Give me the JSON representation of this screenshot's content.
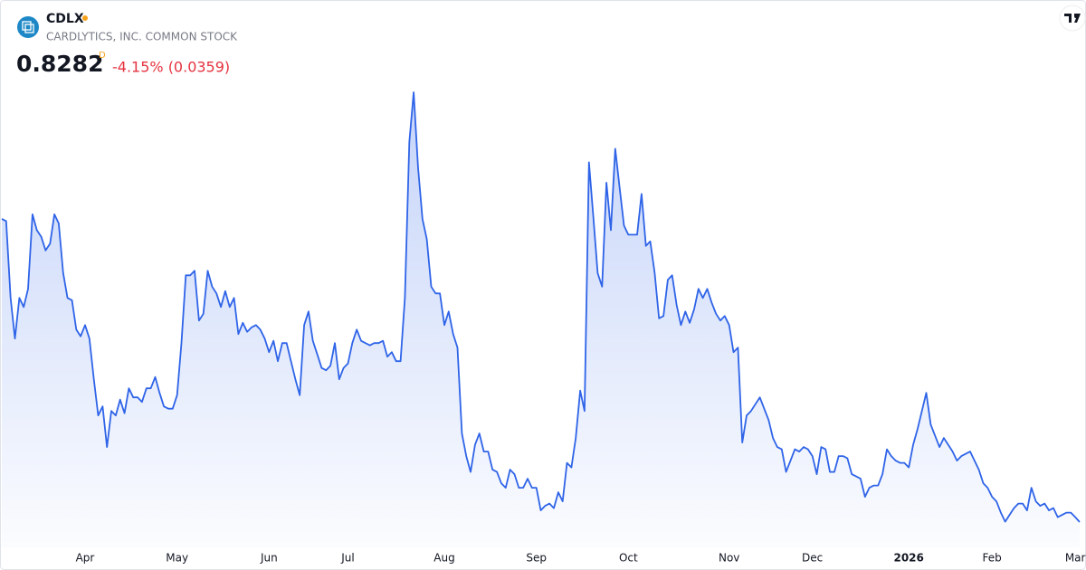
{
  "header": {
    "symbol": "CDLX",
    "name": "CARDLYTICS, INC. COMMON STOCK",
    "price": "0.8282",
    "flag": "D",
    "change": "-4.15% (0.0359)"
  },
  "chart_data": {
    "type": "area",
    "color": "#2f64e8",
    "categories": [
      null,
      null,
      null,
      null,
      null,
      null,
      null,
      null,
      null,
      null,
      null,
      null,
      null,
      null,
      null,
      null,
      null,
      null,
      null,
      "Apr",
      null,
      null,
      null,
      null,
      null,
      null,
      null,
      null,
      null,
      null,
      null,
      null,
      null,
      null,
      null,
      null,
      null,
      null,
      null,
      null,
      "May",
      null,
      null,
      null,
      null,
      null,
      null,
      null,
      null,
      null,
      null,
      null,
      null,
      null,
      null,
      null,
      null,
      null,
      null,
      null,
      null,
      "Jun",
      null,
      null,
      null,
      null,
      null,
      null,
      null,
      null,
      null,
      null,
      null,
      null,
      null,
      null,
      null,
      null,
      null,
      "Jul",
      null,
      null,
      null,
      null,
      null,
      null,
      null,
      null,
      null,
      null,
      null,
      null,
      null,
      null,
      null,
      null,
      null,
      null,
      null,
      null,
      null,
      "Aug",
      null,
      null,
      null,
      null,
      null,
      null,
      null,
      null,
      null,
      null,
      null,
      null,
      null,
      null,
      null,
      null,
      null,
      null,
      null,
      null,
      "Sep",
      null,
      null,
      null,
      null,
      null,
      null,
      null,
      null,
      null,
      null,
      null,
      null,
      null,
      null,
      null,
      null,
      null,
      null,
      null,
      null,
      "Oct",
      null,
      null,
      null,
      null,
      null,
      null,
      null,
      null,
      null,
      null,
      null,
      null,
      null,
      null,
      null,
      null,
      null,
      null,
      null,
      null,
      null,
      null,
      "Nov",
      null,
      null,
      null,
      null,
      null,
      null,
      null,
      null,
      null,
      null,
      null,
      null,
      null,
      null,
      null,
      null,
      null,
      null,
      "Dec",
      null,
      null,
      null,
      null,
      null,
      null,
      null,
      null,
      null,
      null,
      null,
      null,
      null,
      null,
      null,
      null,
      null,
      null,
      null,
      null,
      null,
      "2026",
      null,
      null,
      null,
      null,
      null,
      null,
      null,
      null,
      null,
      null,
      null,
      null,
      null,
      null,
      null,
      null,
      null,
      null,
      "Feb",
      null,
      null,
      null,
      null,
      null,
      null,
      null,
      null,
      null,
      null,
      null,
      null,
      null,
      null,
      null,
      null,
      null,
      null,
      "Mar",
      null
    ],
    "values": [
      2.17,
      2.16,
      1.82,
      1.64,
      1.82,
      1.78,
      1.86,
      2.19,
      2.12,
      2.09,
      2.03,
      2.06,
      2.19,
      2.15,
      1.93,
      1.82,
      1.81,
      1.68,
      1.65,
      1.7,
      1.64,
      1.46,
      1.3,
      1.34,
      1.16,
      1.32,
      1.3,
      1.37,
      1.31,
      1.42,
      1.38,
      1.38,
      1.36,
      1.42,
      1.42,
      1.47,
      1.4,
      1.34,
      1.33,
      1.33,
      1.39,
      1.62,
      1.92,
      1.92,
      1.94,
      1.72,
      1.75,
      1.94,
      1.87,
      1.84,
      1.78,
      1.85,
      1.78,
      1.82,
      1.66,
      1.71,
      1.67,
      1.69,
      1.7,
      1.68,
      1.64,
      1.58,
      1.63,
      1.54,
      1.62,
      1.62,
      1.54,
      1.46,
      1.39,
      1.7,
      1.76,
      1.63,
      1.57,
      1.51,
      1.5,
      1.52,
      1.62,
      1.46,
      1.51,
      1.53,
      1.62,
      1.68,
      1.63,
      1.62,
      1.61,
      1.62,
      1.62,
      1.63,
      1.56,
      1.58,
      1.54,
      1.54,
      1.82,
      2.51,
      2.73,
      2.4,
      2.17,
      2.08,
      1.87,
      1.84,
      1.84,
      1.7,
      1.76,
      1.66,
      1.6,
      1.22,
      1.12,
      1.05,
      1.17,
      1.22,
      1.14,
      1.14,
      1.06,
      1.05,
      1.0,
      0.98,
      1.06,
      1.04,
      0.98,
      0.98,
      1.02,
      0.98,
      0.98,
      0.88,
      0.9,
      0.91,
      0.89,
      0.96,
      0.92,
      1.09,
      1.07,
      1.2,
      1.41,
      1.32,
      2.42,
      2.18,
      1.93,
      1.87,
      2.33,
      2.12,
      2.48,
      2.31,
      2.14,
      2.1,
      2.1,
      2.1,
      2.28,
      2.05,
      2.07,
      1.93,
      1.73,
      1.74,
      1.9,
      1.92,
      1.79,
      1.7,
      1.76,
      1.71,
      1.77,
      1.86,
      1.82,
      1.86,
      1.8,
      1.75,
      1.72,
      1.74,
      1.7,
      1.58,
      1.6,
      1.18,
      1.3,
      1.32,
      1.35,
      1.38,
      1.33,
      1.28,
      1.2,
      1.16,
      1.15,
      1.05,
      1.1,
      1.15,
      1.14,
      1.16,
      1.15,
      1.12,
      1.04,
      1.16,
      1.15,
      1.05,
      1.05,
      1.12,
      1.12,
      1.11,
      1.04,
      1.03,
      1.02,
      0.94,
      0.98,
      0.99,
      0.99,
      1.04,
      1.15,
      1.12,
      1.1,
      1.09,
      1.09,
      1.07,
      1.17,
      1.24,
      1.32,
      1.4,
      1.26,
      1.21,
      1.16,
      1.2,
      1.17,
      1.14,
      1.1,
      1.12,
      1.13,
      1.14,
      1.1,
      1.06,
      1.0,
      0.98,
      0.94,
      0.92,
      0.87,
      0.83,
      0.86,
      0.89,
      0.91,
      0.91,
      0.88,
      0.98,
      0.92,
      0.9,
      0.91,
      0.88,
      0.89,
      0.85,
      0.86,
      0.87,
      0.87,
      0.85,
      0.8282
    ]
  }
}
